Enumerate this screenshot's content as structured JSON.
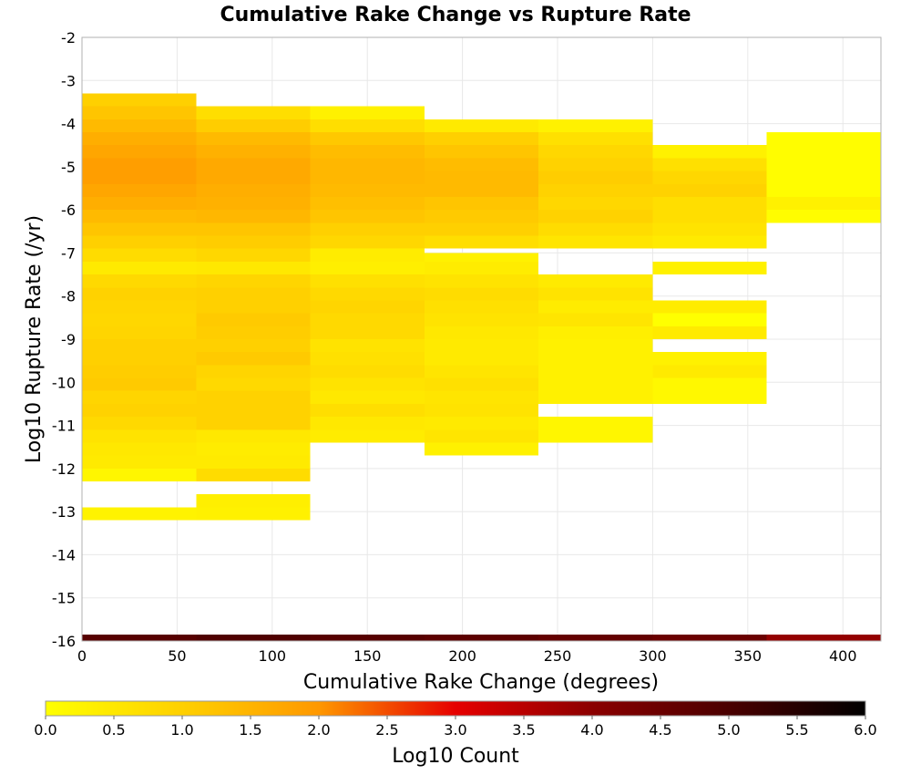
{
  "chart_data": {
    "type": "heatmap",
    "title": "Cumulative Rake Change vs Rupture Rate",
    "xlabel": "Cumulative Rake Change (degrees)",
    "ylabel": "Log10 Rupture Rate (/yr)",
    "xlim": [
      0,
      420
    ],
    "ylim": [
      -16,
      -2
    ],
    "x_ticks": [
      "0",
      "50",
      "100",
      "150",
      "200",
      "250",
      "300",
      "350",
      "400"
    ],
    "y_ticks": [
      "-2",
      "-3",
      "-4",
      "-5",
      "-6",
      "-7",
      "-8",
      "-9",
      "-10",
      "-11",
      "-12",
      "-13",
      "-14",
      "-15",
      "-16"
    ],
    "grid": true,
    "bin_width_x": 60,
    "bin_height_y": 0.3,
    "colorbar": {
      "label": "Log10 Count",
      "range": [
        0,
        6
      ],
      "ticks": [
        "0.0",
        "0.5",
        "1.0",
        "1.5",
        "2.0",
        "2.5",
        "3.0",
        "3.5",
        "4.0",
        "4.5",
        "5.0",
        "5.5",
        "6.0"
      ],
      "colors": [
        "#ffff00",
        "#ffa800",
        "#ff5500",
        "#e60000",
        "#8b0000",
        "#000000"
      ]
    },
    "columns": [
      {
        "x_start": 0,
        "x_end": 60,
        "bins": [
          {
            "y_start": -3.6,
            "y_end": -3.3,
            "value": 1.0
          },
          {
            "y_start": -3.9,
            "y_end": -3.6,
            "value": 1.2
          },
          {
            "y_start": -4.2,
            "y_end": -3.9,
            "value": 1.4
          },
          {
            "y_start": -4.5,
            "y_end": -4.2,
            "value": 1.6
          },
          {
            "y_start": -4.8,
            "y_end": -4.5,
            "value": 1.75
          },
          {
            "y_start": -5.1,
            "y_end": -4.8,
            "value": 1.9
          },
          {
            "y_start": -5.4,
            "y_end": -5.1,
            "value": 1.9
          },
          {
            "y_start": -5.7,
            "y_end": -5.4,
            "value": 1.75
          },
          {
            "y_start": -6.0,
            "y_end": -5.7,
            "value": 1.6
          },
          {
            "y_start": -6.3,
            "y_end": -6.0,
            "value": 1.4
          },
          {
            "y_start": -6.6,
            "y_end": -6.3,
            "value": 1.2
          },
          {
            "y_start": -6.9,
            "y_end": -6.6,
            "value": 1.0
          },
          {
            "y_start": -7.2,
            "y_end": -6.9,
            "value": 0.75
          },
          {
            "y_start": -7.5,
            "y_end": -7.2,
            "value": 0.45
          },
          {
            "y_start": -7.8,
            "y_end": -7.5,
            "value": 0.8
          },
          {
            "y_start": -8.1,
            "y_end": -7.8,
            "value": 0.95
          },
          {
            "y_start": -8.4,
            "y_end": -8.1,
            "value": 0.9
          },
          {
            "y_start": -8.7,
            "y_end": -8.4,
            "value": 0.85
          },
          {
            "y_start": -9.0,
            "y_end": -8.7,
            "value": 0.9
          },
          {
            "y_start": -9.3,
            "y_end": -9.0,
            "value": 1.0
          },
          {
            "y_start": -9.6,
            "y_end": -9.3,
            "value": 1.0
          },
          {
            "y_start": -9.9,
            "y_end": -9.6,
            "value": 1.05
          },
          {
            "y_start": -10.2,
            "y_end": -9.9,
            "value": 1.1
          },
          {
            "y_start": -10.5,
            "y_end": -10.2,
            "value": 0.9
          },
          {
            "y_start": -10.8,
            "y_end": -10.5,
            "value": 0.95
          },
          {
            "y_start": -11.1,
            "y_end": -10.8,
            "value": 0.8
          },
          {
            "y_start": -11.4,
            "y_end": -11.1,
            "value": 0.6
          },
          {
            "y_start": -11.7,
            "y_end": -11.4,
            "value": 0.5
          },
          {
            "y_start": -12.0,
            "y_end": -11.7,
            "value": 0.45
          },
          {
            "y_start": -12.3,
            "y_end": -12.0,
            "value": 0.2
          },
          {
            "y_start": -13.2,
            "y_end": -12.9,
            "value": 0.25
          },
          {
            "y_start": -16.0,
            "y_end": -15.85,
            "value": 4.8
          }
        ]
      },
      {
        "x_start": 60,
        "x_end": 120,
        "bins": [
          {
            "y_start": -3.9,
            "y_end": -3.6,
            "value": 0.7
          },
          {
            "y_start": -4.2,
            "y_end": -3.9,
            "value": 1.05
          },
          {
            "y_start": -4.5,
            "y_end": -4.2,
            "value": 1.4
          },
          {
            "y_start": -4.8,
            "y_end": -4.5,
            "value": 1.55
          },
          {
            "y_start": -5.1,
            "y_end": -4.8,
            "value": 1.7
          },
          {
            "y_start": -5.4,
            "y_end": -5.1,
            "value": 1.7
          },
          {
            "y_start": -5.7,
            "y_end": -5.4,
            "value": 1.6
          },
          {
            "y_start": -6.0,
            "y_end": -5.7,
            "value": 1.55
          },
          {
            "y_start": -6.3,
            "y_end": -6.0,
            "value": 1.45
          },
          {
            "y_start": -6.6,
            "y_end": -6.3,
            "value": 1.2
          },
          {
            "y_start": -6.9,
            "y_end": -6.6,
            "value": 1.05
          },
          {
            "y_start": -7.2,
            "y_end": -6.9,
            "value": 0.85
          },
          {
            "y_start": -7.5,
            "y_end": -7.2,
            "value": 0.5
          },
          {
            "y_start": -7.8,
            "y_end": -7.5,
            "value": 0.9
          },
          {
            "y_start": -8.1,
            "y_end": -7.8,
            "value": 1.0
          },
          {
            "y_start": -8.4,
            "y_end": -8.1,
            "value": 1.0
          },
          {
            "y_start": -8.7,
            "y_end": -8.4,
            "value": 1.1
          },
          {
            "y_start": -9.0,
            "y_end": -8.7,
            "value": 1.05
          },
          {
            "y_start": -9.3,
            "y_end": -9.0,
            "value": 1.0
          },
          {
            "y_start": -9.6,
            "y_end": -9.3,
            "value": 1.1
          },
          {
            "y_start": -9.9,
            "y_end": -9.6,
            "value": 0.9
          },
          {
            "y_start": -10.2,
            "y_end": -9.9,
            "value": 0.8
          },
          {
            "y_start": -10.5,
            "y_end": -10.2,
            "value": 0.95
          },
          {
            "y_start": -10.8,
            "y_end": -10.5,
            "value": 0.95
          },
          {
            "y_start": -11.1,
            "y_end": -10.8,
            "value": 0.95
          },
          {
            "y_start": -11.4,
            "y_end": -11.1,
            "value": 0.5
          },
          {
            "y_start": -11.7,
            "y_end": -11.4,
            "value": 0.4
          },
          {
            "y_start": -12.0,
            "y_end": -11.7,
            "value": 0.45
          },
          {
            "y_start": -12.3,
            "y_end": -12.0,
            "value": 0.75
          },
          {
            "y_start": -12.9,
            "y_end": -12.6,
            "value": 0.35
          },
          {
            "y_start": -13.2,
            "y_end": -12.9,
            "value": 0.3
          },
          {
            "y_start": -16.0,
            "y_end": -15.85,
            "value": 4.9
          }
        ]
      },
      {
        "x_start": 120,
        "x_end": 180,
        "bins": [
          {
            "y_start": -3.9,
            "y_end": -3.6,
            "value": 0.3
          },
          {
            "y_start": -4.2,
            "y_end": -3.9,
            "value": 0.7
          },
          {
            "y_start": -4.5,
            "y_end": -4.2,
            "value": 1.15
          },
          {
            "y_start": -4.8,
            "y_end": -4.5,
            "value": 1.35
          },
          {
            "y_start": -5.1,
            "y_end": -4.8,
            "value": 1.45
          },
          {
            "y_start": -5.4,
            "y_end": -5.1,
            "value": 1.45
          },
          {
            "y_start": -5.7,
            "y_end": -5.4,
            "value": 1.4
          },
          {
            "y_start": -6.0,
            "y_end": -5.7,
            "value": 1.3
          },
          {
            "y_start": -6.3,
            "y_end": -6.0,
            "value": 1.2
          },
          {
            "y_start": -6.6,
            "y_end": -6.3,
            "value": 1.0
          },
          {
            "y_start": -6.9,
            "y_end": -6.6,
            "value": 0.85
          },
          {
            "y_start": -7.2,
            "y_end": -6.9,
            "value": 0.4
          },
          {
            "y_start": -7.5,
            "y_end": -7.2,
            "value": 0.35
          },
          {
            "y_start": -7.8,
            "y_end": -7.5,
            "value": 0.65
          },
          {
            "y_start": -8.1,
            "y_end": -7.8,
            "value": 0.8
          },
          {
            "y_start": -8.4,
            "y_end": -8.1,
            "value": 0.9
          },
          {
            "y_start": -8.7,
            "y_end": -8.4,
            "value": 0.8
          },
          {
            "y_start": -9.0,
            "y_end": -8.7,
            "value": 0.8
          },
          {
            "y_start": -9.3,
            "y_end": -9.0,
            "value": 0.6
          },
          {
            "y_start": -9.6,
            "y_end": -9.3,
            "value": 0.65
          },
          {
            "y_start": -9.9,
            "y_end": -9.6,
            "value": 0.75
          },
          {
            "y_start": -10.2,
            "y_end": -9.9,
            "value": 0.6
          },
          {
            "y_start": -10.5,
            "y_end": -10.2,
            "value": 0.5
          },
          {
            "y_start": -10.8,
            "y_end": -10.5,
            "value": 0.7
          },
          {
            "y_start": -11.1,
            "y_end": -10.8,
            "value": 0.5
          },
          {
            "y_start": -11.4,
            "y_end": -11.1,
            "value": 0.4
          },
          {
            "y_start": -16.0,
            "y_end": -15.85,
            "value": 4.8
          }
        ]
      },
      {
        "x_start": 180,
        "x_end": 240,
        "bins": [
          {
            "y_start": -4.2,
            "y_end": -3.9,
            "value": 0.45
          },
          {
            "y_start": -4.5,
            "y_end": -4.2,
            "value": 1.0
          },
          {
            "y_start": -4.8,
            "y_end": -4.5,
            "value": 1.2
          },
          {
            "y_start": -5.1,
            "y_end": -4.8,
            "value": 1.35
          },
          {
            "y_start": -5.4,
            "y_end": -5.1,
            "value": 1.4
          },
          {
            "y_start": -5.7,
            "y_end": -5.4,
            "value": 1.4
          },
          {
            "y_start": -6.0,
            "y_end": -5.7,
            "value": 1.2
          },
          {
            "y_start": -6.3,
            "y_end": -6.0,
            "value": 1.1
          },
          {
            "y_start": -6.6,
            "y_end": -6.3,
            "value": 1.0
          },
          {
            "y_start": -6.9,
            "y_end": -6.6,
            "value": 0.7
          },
          {
            "y_start": -7.2,
            "y_end": -7.0,
            "value": 0.3
          },
          {
            "y_start": -7.5,
            "y_end": -7.2,
            "value": 0.4
          },
          {
            "y_start": -7.8,
            "y_end": -7.5,
            "value": 0.6
          },
          {
            "y_start": -8.1,
            "y_end": -7.8,
            "value": 0.75
          },
          {
            "y_start": -8.4,
            "y_end": -8.1,
            "value": 0.65
          },
          {
            "y_start": -8.7,
            "y_end": -8.4,
            "value": 0.6
          },
          {
            "y_start": -9.0,
            "y_end": -8.7,
            "value": 0.5
          },
          {
            "y_start": -9.3,
            "y_end": -9.0,
            "value": 0.45
          },
          {
            "y_start": -9.6,
            "y_end": -9.3,
            "value": 0.45
          },
          {
            "y_start": -9.9,
            "y_end": -9.6,
            "value": 0.55
          },
          {
            "y_start": -10.2,
            "y_end": -9.9,
            "value": 0.65
          },
          {
            "y_start": -10.5,
            "y_end": -10.2,
            "value": 0.55
          },
          {
            "y_start": -10.8,
            "y_end": -10.5,
            "value": 0.6
          },
          {
            "y_start": -11.1,
            "y_end": -10.8,
            "value": 0.45
          },
          {
            "y_start": -11.4,
            "y_end": -11.1,
            "value": 0.55
          },
          {
            "y_start": -11.7,
            "y_end": -11.4,
            "value": 0.3
          },
          {
            "y_start": -16.0,
            "y_end": -15.85,
            "value": 4.7
          }
        ]
      },
      {
        "x_start": 240,
        "x_end": 300,
        "bins": [
          {
            "y_start": -4.2,
            "y_end": -3.9,
            "value": 0.3
          },
          {
            "y_start": -4.5,
            "y_end": -4.2,
            "value": 0.65
          },
          {
            "y_start": -4.8,
            "y_end": -4.5,
            "value": 0.85
          },
          {
            "y_start": -5.1,
            "y_end": -4.8,
            "value": 0.95
          },
          {
            "y_start": -5.4,
            "y_end": -5.1,
            "value": 1.05
          },
          {
            "y_start": -5.7,
            "y_end": -5.4,
            "value": 0.95
          },
          {
            "y_start": -6.0,
            "y_end": -5.7,
            "value": 0.85
          },
          {
            "y_start": -6.3,
            "y_end": -6.0,
            "value": 0.95
          },
          {
            "y_start": -6.6,
            "y_end": -6.3,
            "value": 0.75
          },
          {
            "y_start": -6.9,
            "y_end": -6.6,
            "value": 0.55
          },
          {
            "y_start": -7.8,
            "y_end": -7.5,
            "value": 0.45
          },
          {
            "y_start": -8.1,
            "y_end": -7.8,
            "value": 0.6
          },
          {
            "y_start": -8.4,
            "y_end": -8.1,
            "value": 0.4
          },
          {
            "y_start": -8.7,
            "y_end": -8.4,
            "value": 0.55
          },
          {
            "y_start": -9.0,
            "y_end": -8.7,
            "value": 0.35
          },
          {
            "y_start": -9.3,
            "y_end": -9.0,
            "value": 0.3
          },
          {
            "y_start": -9.6,
            "y_end": -9.3,
            "value": 0.3
          },
          {
            "y_start": -9.9,
            "y_end": -9.6,
            "value": 0.3
          },
          {
            "y_start": -10.2,
            "y_end": -9.9,
            "value": 0.3
          },
          {
            "y_start": -10.5,
            "y_end": -10.2,
            "value": 0.3
          },
          {
            "y_start": -11.1,
            "y_end": -10.8,
            "value": 0.2
          },
          {
            "y_start": -11.4,
            "y_end": -11.1,
            "value": 0.2
          },
          {
            "y_start": -16.0,
            "y_end": -15.85,
            "value": 4.6
          }
        ]
      },
      {
        "x_start": 300,
        "x_end": 360,
        "bins": [
          {
            "y_start": -4.8,
            "y_end": -4.5,
            "value": 0.3
          },
          {
            "y_start": -5.1,
            "y_end": -4.8,
            "value": 0.65
          },
          {
            "y_start": -5.4,
            "y_end": -5.1,
            "value": 0.85
          },
          {
            "y_start": -5.7,
            "y_end": -5.4,
            "value": 0.95
          },
          {
            "y_start": -6.0,
            "y_end": -5.7,
            "value": 0.7
          },
          {
            "y_start": -6.3,
            "y_end": -6.0,
            "value": 0.7
          },
          {
            "y_start": -6.6,
            "y_end": -6.3,
            "value": 0.6
          },
          {
            "y_start": -6.9,
            "y_end": -6.6,
            "value": 0.45
          },
          {
            "y_start": -7.5,
            "y_end": -7.2,
            "value": 0.3
          },
          {
            "y_start": -8.4,
            "y_end": -8.1,
            "value": 0.4
          },
          {
            "y_start": -8.7,
            "y_end": -8.4,
            "value": 0.0
          },
          {
            "y_start": -9.0,
            "y_end": -8.7,
            "value": 0.45
          },
          {
            "y_start": -9.6,
            "y_end": -9.3,
            "value": 0.3
          },
          {
            "y_start": -9.9,
            "y_end": -9.6,
            "value": 0.45
          },
          {
            "y_start": -10.2,
            "y_end": -9.9,
            "value": 0.15
          },
          {
            "y_start": -10.5,
            "y_end": -10.2,
            "value": 0.15
          },
          {
            "y_start": -16.0,
            "y_end": -15.85,
            "value": 4.5
          }
        ]
      },
      {
        "x_start": 360,
        "x_end": 420,
        "bins": [
          {
            "y_start": -4.5,
            "y_end": -4.2,
            "value": 0.05
          },
          {
            "y_start": -4.8,
            "y_end": -4.5,
            "value": 0.05
          },
          {
            "y_start": -5.1,
            "y_end": -4.8,
            "value": 0.05
          },
          {
            "y_start": -5.4,
            "y_end": -5.1,
            "value": 0.05
          },
          {
            "y_start": -5.7,
            "y_end": -5.4,
            "value": 0.05
          },
          {
            "y_start": -6.0,
            "y_end": -5.7,
            "value": 0.3
          },
          {
            "y_start": -6.3,
            "y_end": -6.0,
            "value": 0.05
          },
          {
            "y_start": -16.0,
            "y_end": -15.85,
            "value": 3.9
          }
        ]
      }
    ]
  }
}
